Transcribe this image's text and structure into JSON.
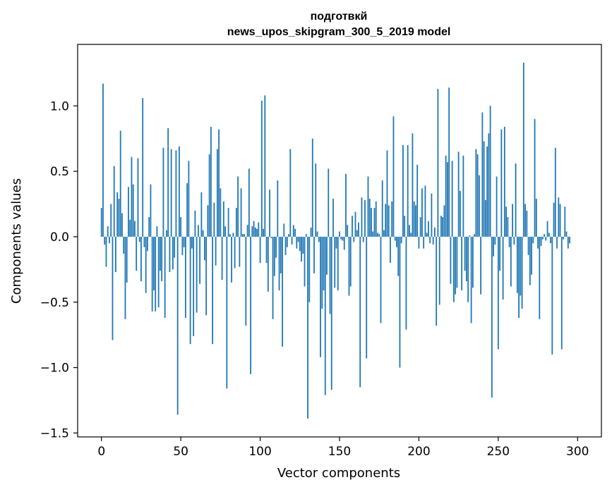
{
  "colors": {
    "bar": "#1f77b4",
    "axis": "#000000",
    "background": "#ffffff"
  },
  "chart_data": {
    "type": "bar",
    "title": "подготвкй",
    "subtitle": "news_upos_skipgram_300_5_2019 model",
    "xlabel": "Vector components",
    "ylabel": "Components values",
    "xlim": [
      -15,
      315
    ],
    "ylim": [
      -1.53,
      1.47
    ],
    "xticks": [
      0,
      50,
      100,
      150,
      200,
      250,
      300
    ],
    "xtick_labels": [
      "0",
      "50",
      "100",
      "150",
      "200",
      "250",
      "300"
    ],
    "yticks": [
      -1.5,
      -1.0,
      -0.5,
      0.0,
      0.5,
      1.0
    ],
    "ytick_labels": [
      "−1.5",
      "−1.0",
      "−0.5",
      "0.0",
      "0.5",
      "1.0"
    ],
    "grid": false,
    "bar_width": 0.8,
    "values": [
      0.22,
      1.17,
      -0.06,
      -0.23,
      0.08,
      -0.05,
      0.25,
      -0.79,
      0.54,
      -0.27,
      0.34,
      0.29,
      0.81,
      0.18,
      -0.13,
      -0.63,
      -0.35,
      0.38,
      0.13,
      0.61,
      0.4,
      0.12,
      -0.26,
      0.6,
      -0.04,
      -0.34,
      1.06,
      -0.08,
      -0.43,
      -0.11,
      0.15,
      0.4,
      -0.57,
      -0.41,
      -0.57,
      0.08,
      -0.54,
      -0.26,
      -0.34,
      0.68,
      -0.62,
      0.05,
      0.83,
      -0.27,
      0.67,
      -0.25,
      -0.16,
      0.66,
      -1.36,
      0.69,
      0.15,
      -0.14,
      -0.08,
      -0.62,
      0.41,
      0.58,
      -0.82,
      -0.09,
      -0.76,
      0.2,
      -0.58,
      0.09,
      -0.36,
      0.34,
      0.05,
      -0.18,
      -0.6,
      0.24,
      0.63,
      0.84,
      -0.82,
      0.26,
      -0.22,
      0.67,
      0.82,
      0.37,
      -0.33,
      0.27,
      0.08,
      -1.16,
      0.22,
      0.02,
      -0.35,
      0.03,
      -0.24,
      0.22,
      0.46,
      -0.23,
      0.37,
      0.02,
      0.02,
      -0.68,
      0.09,
      0.52,
      -1.05,
      0.08,
      0.12,
      0.07,
      0.06,
      0.11,
      -0.2,
      1.04,
      0.06,
      1.08,
      -0.2,
      -0.42,
      0.36,
      -0.01,
      -0.63,
      -0.3,
      -0.16,
      0.43,
      -0.41,
      -0.28,
      -0.84,
      0.1,
      -0.14,
      -0.08,
      0.02,
      0.67,
      -0.06,
      0.09,
      0.06,
      -0.09,
      -0.04,
      -0.11,
      -0.19,
      -0.13,
      -0.38,
      0.02,
      -1.39,
      -0.5,
      0.07,
      0.75,
      -0.28,
      0.56,
      0.04,
      -0.04,
      -0.92,
      -0.55,
      -0.41,
      -1.21,
      -0.29,
      0.52,
      -0.59,
      -1.17,
      0.29,
      -0.39,
      -0.09,
      -0.41,
      0.04,
      -0.02,
      -0.03,
      -0.1,
      0.48,
      0.09,
      -0.45,
      -0.38,
      0.16,
      -0.04,
      0.19,
      0.05,
      0.11,
      -1.15,
      0.3,
      -0.04,
      0.28,
      -0.93,
      0.46,
      0.29,
      0.22,
      0.04,
      0.22,
      0.27,
      0.03,
      0.02,
      -0.66,
      0.43,
      0.05,
      0.25,
      0.66,
      0.24,
      -0.2,
      0.27,
      0.92,
      -0.03,
      -0.08,
      -0.3,
      -1.0,
      -0.05,
      0.7,
      0.16,
      -0.71,
      0.7,
      0.09,
      0.03,
      0.79,
      0.27,
      0.24,
      0.55,
      -0.09,
      0.15,
      0.37,
      -0.09,
      0.39,
      0.03,
      0.12,
      -0.05,
      0.33,
      -0.06,
      0.07,
      -0.68,
      1.13,
      -0.52,
      0.16,
      0.15,
      0.24,
      0.62,
      0.57,
      1.14,
      -0.36,
      0.58,
      -0.5,
      -0.44,
      -0.39,
      0.65,
      0.35,
      -0.41,
      0.62,
      -0.26,
      -0.34,
      -0.5,
      0.01,
      -0.66,
      -0.39,
      0.02,
      0.67,
      0.63,
      0.47,
      -0.44,
      0.95,
      0.73,
      0.28,
      0.69,
      0.79,
      1.0,
      -1.23,
      -0.15,
      -0.06,
      0.46,
      -0.86,
      -0.26,
      0.82,
      -0.48,
      0.84,
      0.23,
      0.15,
      -0.08,
      -0.38,
      0.25,
      -0.06,
      0.56,
      -0.43,
      -0.62,
      -0.45,
      -0.55,
      1.33,
      0.25,
      0.2,
      -0.14,
      -0.37,
      -0.29,
      -0.05,
      0.9,
      0.29,
      -0.09,
      -0.63,
      -0.07,
      -0.02,
      0.02,
      -0.03,
      0.12,
      0.03,
      -0.05,
      -0.9,
      0.26,
      0.68,
      -0.09,
      0.3,
      0.25,
      -0.86,
      -0.02,
      0.23,
      0.04,
      -0.09,
      -0.05
    ]
  }
}
